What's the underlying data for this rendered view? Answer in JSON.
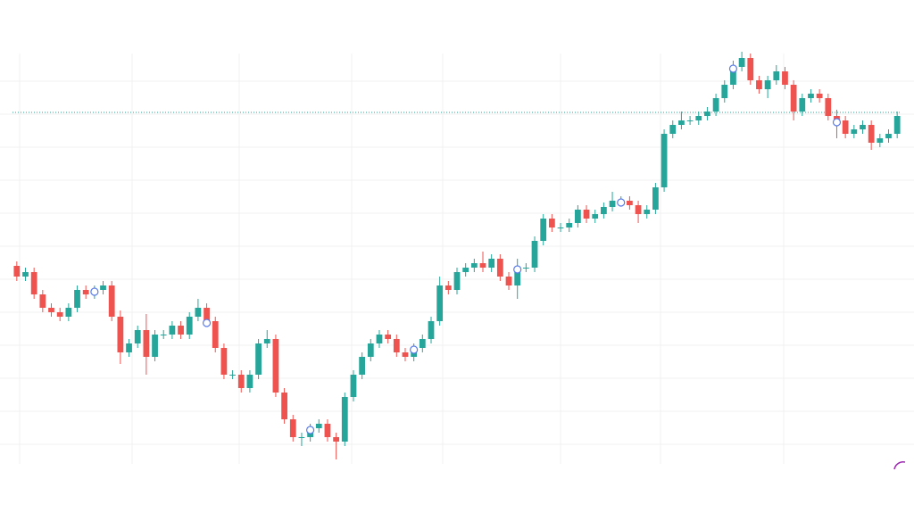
{
  "chart_data": {
    "type": "candlestick",
    "categories": [
      null,
      null,
      null,
      null,
      null,
      null,
      null,
      null,
      null,
      null,
      null,
      null,
      null,
      null,
      null,
      null,
      null,
      null,
      null,
      null,
      null,
      null,
      null,
      null,
      null,
      null,
      null,
      null,
      null,
      null,
      null,
      null,
      null,
      null,
      null,
      null,
      null,
      null,
      null,
      null,
      null,
      null,
      null,
      null,
      null,
      null,
      null,
      null,
      null,
      null,
      null,
      null,
      null,
      null,
      null,
      null,
      null,
      null,
      null,
      null,
      null,
      null,
      null,
      null,
      null,
      null,
      null,
      null,
      null,
      null,
      null,
      null,
      null,
      null,
      null,
      null,
      null,
      null,
      null,
      null,
      null,
      null,
      null,
      null,
      null,
      null,
      null,
      null,
      null,
      null,
      null,
      null,
      null,
      null,
      null,
      null,
      null,
      null,
      null,
      null,
      null,
      null,
      null
    ],
    "open": [
      222,
      210,
      215,
      190,
      175,
      170,
      165,
      175,
      195,
      190,
      195,
      200,
      165,
      125,
      135,
      150,
      120,
      145,
      145,
      155,
      145,
      165,
      175,
      160,
      130,
      100,
      100,
      85,
      100,
      135,
      140,
      80,
      50,
      30,
      30,
      40,
      45,
      30,
      25,
      75,
      100,
      120,
      135,
      145,
      140,
      125,
      120,
      130,
      140,
      160,
      200,
      195,
      215,
      220,
      225,
      220,
      230,
      210,
      200,
      220,
      220,
      250,
      275,
      265,
      265,
      270,
      285,
      275,
      280,
      288,
      295,
      295,
      290,
      280,
      285,
      310,
      370,
      380,
      385,
      385,
      390,
      395,
      410,
      425,
      445,
      455,
      430,
      420,
      430,
      440,
      425,
      395,
      410,
      415,
      410,
      390,
      385,
      370,
      375,
      380,
      360,
      365,
      370
    ],
    "high": [
      227,
      220,
      220,
      195,
      180,
      175,
      180,
      200,
      200,
      200,
      205,
      205,
      172,
      140,
      155,
      168,
      150,
      150,
      160,
      160,
      170,
      185,
      180,
      165,
      135,
      105,
      105,
      105,
      140,
      150,
      145,
      85,
      55,
      35,
      45,
      50,
      50,
      35,
      80,
      105,
      125,
      140,
      150,
      150,
      145,
      130,
      135,
      145,
      165,
      210,
      205,
      220,
      225,
      230,
      238,
      235,
      235,
      215,
      230,
      225,
      255,
      280,
      280,
      270,
      275,
      290,
      290,
      285,
      293,
      305,
      300,
      300,
      295,
      290,
      315,
      375,
      385,
      395,
      390,
      395,
      400,
      415,
      430,
      452,
      462,
      460,
      435,
      435,
      447,
      445,
      430,
      415,
      420,
      420,
      415,
      397,
      390,
      380,
      385,
      385,
      370,
      375,
      395
    ],
    "low": [
      205,
      205,
      185,
      170,
      165,
      160,
      160,
      170,
      185,
      185,
      190,
      160,
      112,
      120,
      130,
      100,
      115,
      140,
      140,
      140,
      140,
      160,
      155,
      125,
      95,
      95,
      80,
      80,
      95,
      130,
      75,
      45,
      25,
      20,
      25,
      35,
      25,
      5,
      20,
      70,
      95,
      115,
      130,
      135,
      120,
      115,
      115,
      125,
      135,
      155,
      190,
      190,
      210,
      215,
      215,
      215,
      205,
      195,
      185,
      215,
      215,
      245,
      260,
      260,
      260,
      265,
      270,
      270,
      275,
      283,
      290,
      285,
      270,
      275,
      280,
      305,
      365,
      375,
      380,
      380,
      385,
      390,
      405,
      420,
      440,
      425,
      415,
      410,
      425,
      420,
      385,
      390,
      405,
      405,
      385,
      365,
      365,
      365,
      370,
      352,
      355,
      360,
      365
    ],
    "close": [
      210,
      215,
      190,
      175,
      170,
      165,
      175,
      195,
      190,
      195,
      200,
      165,
      125,
      135,
      150,
      120,
      145,
      145,
      155,
      145,
      165,
      175,
      160,
      130,
      100,
      100,
      85,
      100,
      135,
      140,
      80,
      50,
      30,
      30,
      40,
      45,
      30,
      25,
      75,
      100,
      120,
      135,
      145,
      140,
      125,
      120,
      130,
      140,
      160,
      200,
      195,
      215,
      220,
      225,
      220,
      230,
      210,
      200,
      220,
      220,
      250,
      275,
      265,
      265,
      270,
      285,
      275,
      280,
      288,
      295,
      295,
      290,
      280,
      285,
      310,
      370,
      380,
      385,
      385,
      390,
      395,
      410,
      425,
      445,
      455,
      430,
      420,
      430,
      440,
      425,
      395,
      410,
      415,
      410,
      390,
      385,
      370,
      375,
      380,
      360,
      365,
      370,
      390
    ],
    "up_color": "#26a69a",
    "down_color": "#ef5350",
    "ylim": [
      0,
      460
    ],
    "price_line": 394,
    "markers": [
      9,
      22,
      34,
      46,
      58,
      70,
      83,
      95
    ]
  }
}
